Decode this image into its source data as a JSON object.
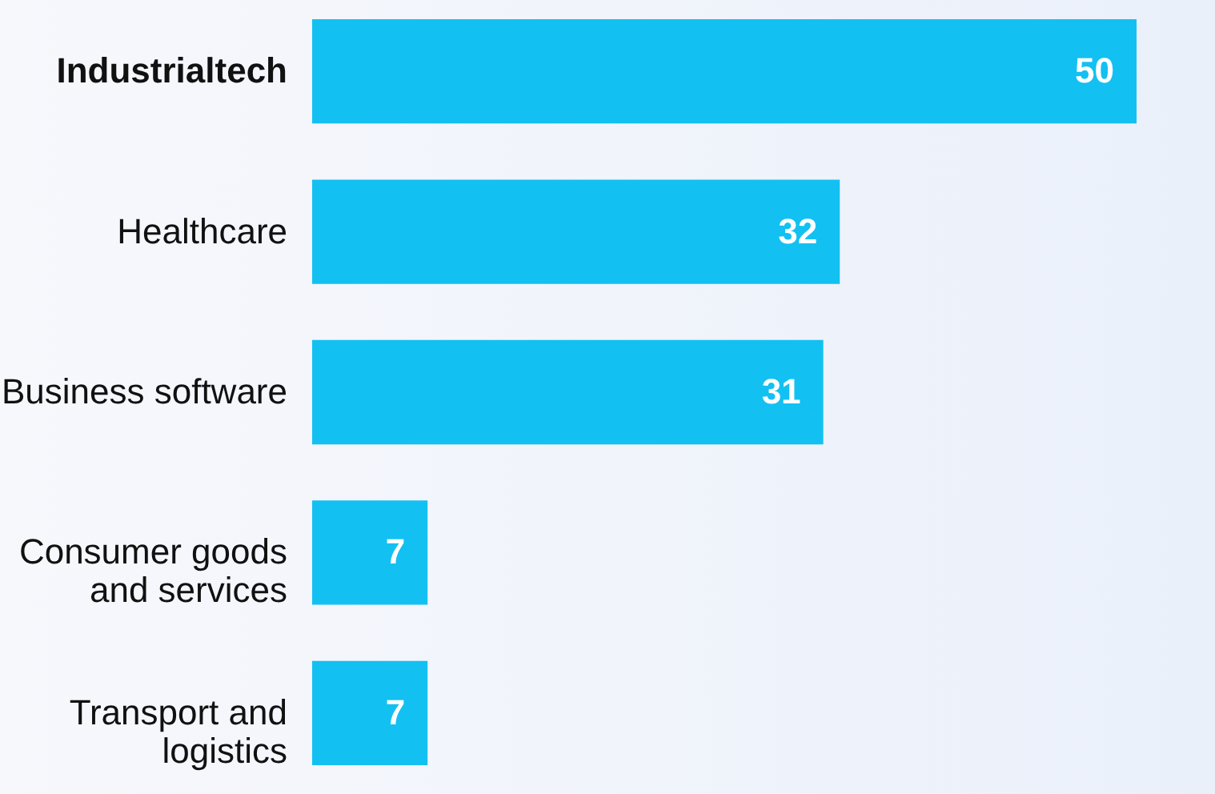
{
  "chart_data": {
    "type": "bar",
    "orientation": "horizontal",
    "categories": [
      "Industrialtech",
      "Healthcare",
      "Business software",
      "Consumer goods and services",
      "Transport and logistics"
    ],
    "values": [
      50,
      32,
      31,
      7,
      7
    ],
    "color": "#13c0f2",
    "data_labels": true
  }
}
